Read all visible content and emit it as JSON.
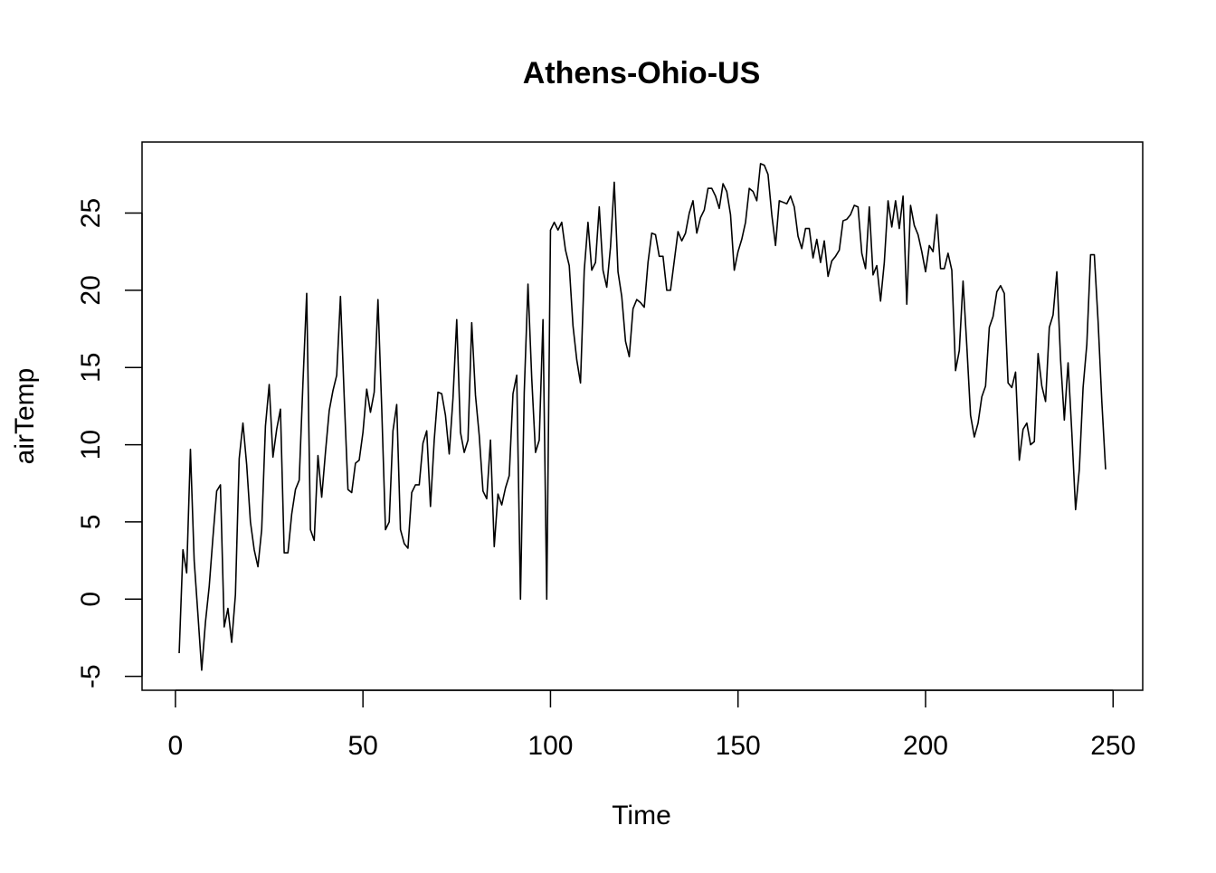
{
  "chart_data": {
    "type": "line",
    "title": "Athens-Ohio-US",
    "xlabel": "Time",
    "ylabel": "airTemp",
    "xlim": [
      -8.9,
      257.9
    ],
    "ylim": [
      -5.9,
      29.6
    ],
    "xticks": [
      0,
      50,
      100,
      150,
      200,
      250
    ],
    "yticks": [
      -5,
      0,
      5,
      10,
      15,
      20,
      25
    ],
    "xtick_labels": [
      "0",
      "50",
      "100",
      "150",
      "200",
      "250"
    ],
    "ytick_labels": [
      "-5",
      "0",
      "5",
      "10",
      "15",
      "20",
      "25"
    ],
    "grid": false,
    "legend": "none",
    "line_color": "#000000",
    "series": [
      {
        "x_start": 1,
        "values": [
          -3.5,
          3.2,
          1.7,
          9.7,
          2.5,
          -1.0,
          -4.6,
          -1.5,
          0.8,
          4.0,
          7.0,
          7.4,
          -1.8,
          -0.6,
          -2.8,
          0.3,
          9.1,
          11.4,
          8.7,
          5.0,
          3.2,
          2.1,
          4.5,
          11.2,
          13.9,
          9.2,
          11.0,
          12.3,
          3.0,
          3.0,
          5.5,
          7.1,
          7.7,
          14.0,
          19.8,
          4.5,
          3.8,
          9.3,
          6.6,
          9.5,
          12.2,
          13.5,
          14.5,
          19.6,
          13.1,
          7.1,
          6.9,
          8.8,
          9.0,
          10.8,
          13.6,
          12.1,
          13.4,
          19.4,
          12.4,
          4.5,
          5.0,
          10.9,
          12.6,
          4.5,
          3.6,
          3.3,
          6.9,
          7.4,
          7.4,
          10.1,
          10.9,
          6.0,
          10.3,
          13.4,
          13.3,
          11.9,
          9.4,
          13.0,
          18.1,
          10.8,
          9.5,
          10.3,
          17.9,
          13.2,
          10.6,
          7.0,
          6.5,
          10.3,
          3.4,
          6.8,
          6.1,
          7.2,
          8.0,
          13.3,
          14.5,
          0.0,
          13.4,
          20.4,
          14.3,
          9.5,
          10.3,
          18.1,
          0.0,
          23.9,
          24.4,
          23.9,
          24.4,
          22.6,
          21.6,
          17.7,
          15.5,
          14.0,
          21.3,
          24.4,
          21.3,
          21.8,
          25.4,
          21.3,
          20.2,
          22.8,
          27.0,
          21.2,
          19.6,
          16.7,
          15.7,
          18.8,
          19.4,
          19.2,
          18.9,
          21.8,
          23.7,
          23.6,
          22.2,
          22.2,
          20.0,
          20.0,
          21.9,
          23.8,
          23.2,
          23.7,
          25.0,
          25.8,
          23.7,
          24.7,
          25.2,
          26.6,
          26.6,
          26.1,
          25.3,
          26.9,
          26.4,
          24.9,
          21.3,
          22.5,
          23.3,
          24.4,
          26.6,
          26.4,
          25.8,
          28.2,
          28.1,
          27.5,
          24.9,
          22.9,
          25.8,
          25.7,
          25.6,
          26.1,
          25.4,
          23.5,
          22.7,
          24.0,
          24.0,
          22.1,
          23.3,
          21.8,
          23.2,
          20.9,
          21.9,
          22.2,
          22.6,
          24.5,
          24.6,
          24.9,
          25.5,
          25.4,
          22.4,
          21.4,
          25.4,
          21.0,
          21.6,
          19.3,
          21.8,
          25.8,
          24.1,
          25.8,
          24.0,
          26.1,
          19.1,
          25.5,
          24.2,
          23.6,
          22.5,
          21.2,
          22.9,
          22.5,
          24.9,
          21.4,
          21.4,
          22.4,
          21.3,
          14.8,
          16.1,
          20.6,
          16.4,
          11.9,
          10.5,
          11.4,
          13.1,
          13.8,
          17.6,
          18.3,
          19.9,
          20.3,
          19.8,
          14.0,
          13.7,
          14.7,
          9.0,
          11.0,
          11.4,
          10.0,
          10.2,
          15.9,
          13.8,
          12.8,
          17.6,
          18.4,
          21.2,
          15.5,
          11.6,
          15.3,
          10.8,
          5.8,
          8.4,
          13.7,
          16.5,
          22.3,
          22.3,
          18.0,
          12.8,
          8.4
        ]
      }
    ]
  }
}
